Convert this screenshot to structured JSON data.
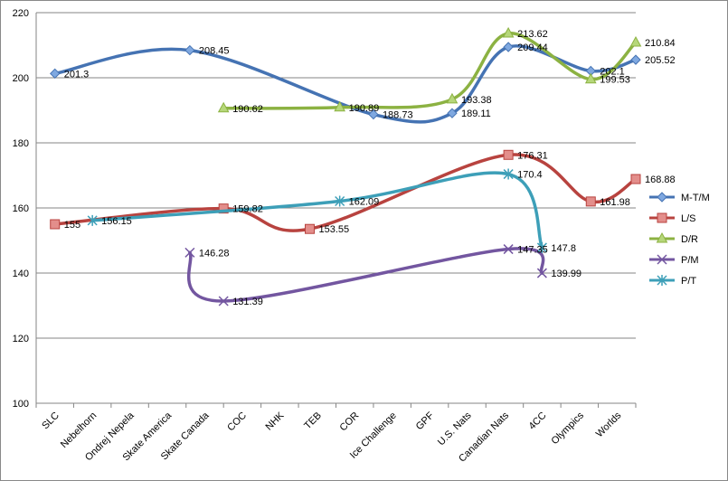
{
  "chart_data": {
    "type": "line",
    "categories": [
      "SLC",
      "Nebelhorn",
      "Ondrej Nepela",
      "Skate America",
      "Skate Canada",
      "COC",
      "NHK",
      "TEB",
      "COR",
      "Ice Challenge",
      "GPF",
      "U.S. Nats",
      "Canadian Nats",
      "4CC",
      "Olympics",
      "Worlds"
    ],
    "ylim": [
      100,
      220
    ],
    "ytick_step": 20,
    "grid": "horizontal",
    "legend_position": "right",
    "series": [
      {
        "name": "M-T/M",
        "color": "#4573b3",
        "marker": "diamond",
        "points": [
          {
            "x": 0,
            "y": 201.3
          },
          {
            "x": 3.6,
            "y": 208.45
          },
          {
            "x": 8.5,
            "y": 188.73
          },
          {
            "x": 10.6,
            "y": 189.11
          },
          {
            "x": 12.1,
            "y": 209.44
          },
          {
            "x": 14.3,
            "y": 202.1
          },
          {
            "x": 15.5,
            "y": 205.52
          }
        ],
        "labels": [
          "201.3",
          "208.45",
          "188.73",
          "189.11",
          "209.44",
          "202.1",
          "205.52"
        ]
      },
      {
        "name": "L/S",
        "color": "#b8433f",
        "marker": "square",
        "points": [
          {
            "x": 0,
            "y": 155
          },
          {
            "x": 4.5,
            "y": 159.82
          },
          {
            "x": 6.8,
            "y": 153.55
          },
          {
            "x": 12.1,
            "y": 176.31
          },
          {
            "x": 14.3,
            "y": 161.98
          },
          {
            "x": 15.5,
            "y": 168.88
          }
        ],
        "labels": [
          "155",
          "159.82",
          "153.55",
          "176.31",
          "161.98",
          "168.88"
        ]
      },
      {
        "name": "D/R",
        "color": "#8cb242",
        "marker": "triangle",
        "points": [
          {
            "x": 4.5,
            "y": 190.62
          },
          {
            "x": 7.6,
            "y": 190.89
          },
          {
            "x": 10.6,
            "y": 193.38
          },
          {
            "x": 12.1,
            "y": 213.62
          },
          {
            "x": 14.3,
            "y": 199.53
          },
          {
            "x": 15.5,
            "y": 210.84
          }
        ],
        "labels": [
          "190.62",
          "190.89",
          "193.38",
          "213.62",
          "199.53",
          "210.84"
        ]
      },
      {
        "name": "P/M",
        "color": "#7356a0",
        "marker": "x",
        "points": [
          {
            "x": 3.6,
            "y": 146.28
          },
          {
            "x": 4.5,
            "y": 131.39
          },
          {
            "x": 12.1,
            "y": 147.35
          },
          {
            "x": 13.0,
            "y": 139.99
          }
        ],
        "labels": [
          "146.28",
          "131.39",
          "147.35",
          "139.99"
        ]
      },
      {
        "name": "P/T",
        "color": "#3d9fb8",
        "marker": "asterisk",
        "points": [
          {
            "x": 1.0,
            "y": 156.15
          },
          {
            "x": 7.6,
            "y": 162.09
          },
          {
            "x": 12.1,
            "y": 170.4
          },
          {
            "x": 13.0,
            "y": 147.8
          }
        ],
        "labels": [
          "156.15",
          "162.09",
          "170.4",
          "147.8"
        ]
      }
    ]
  }
}
